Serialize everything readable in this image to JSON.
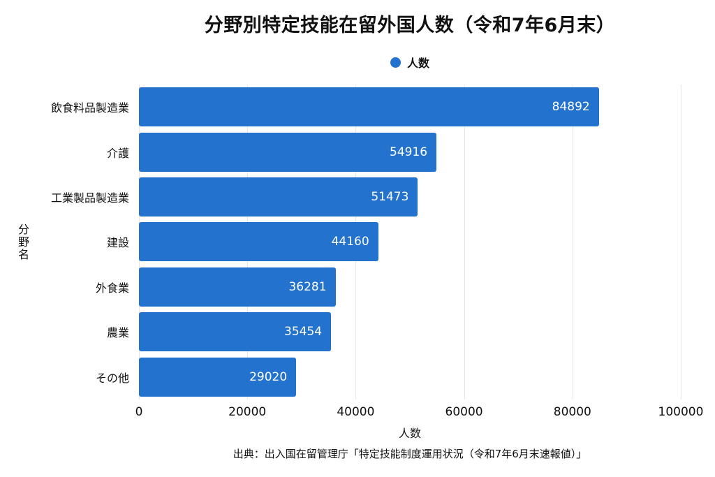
{
  "title": "分野別特定技能在留外国人数（令和7年6月末）",
  "legend": {
    "label": "人数",
    "marker": "circle-icon"
  },
  "source": "出典：出入国在留管理庁「特定技能制度運用状況（令和7年6月末速報値）」",
  "colors": {
    "bar": "#2272ce",
    "value_label": "#ffffff",
    "gridline": "#e7e7e7",
    "text": "#111111"
  },
  "chart_data": {
    "type": "bar",
    "orientation": "horizontal",
    "title": "分野別特定技能在留外国人数（令和7年6月末）",
    "categories": [
      "飲食料品製造業",
      "介護",
      "工業製品製造業",
      "建設",
      "外食業",
      "農業",
      "その他"
    ],
    "values": [
      84892,
      54916,
      51473,
      44160,
      36281,
      35454,
      29020
    ],
    "series": [
      {
        "name": "人数",
        "values": [
          84892,
          54916,
          51473,
          44160,
          36281,
          35454,
          29020
        ]
      }
    ],
    "xlabel": "人数",
    "ylabel": "分野名",
    "xlim": [
      0,
      100000
    ],
    "xticks": [
      0,
      20000,
      40000,
      60000,
      80000,
      100000
    ],
    "grid": true,
    "legend_position": "top",
    "value_labels": "inside-end"
  }
}
